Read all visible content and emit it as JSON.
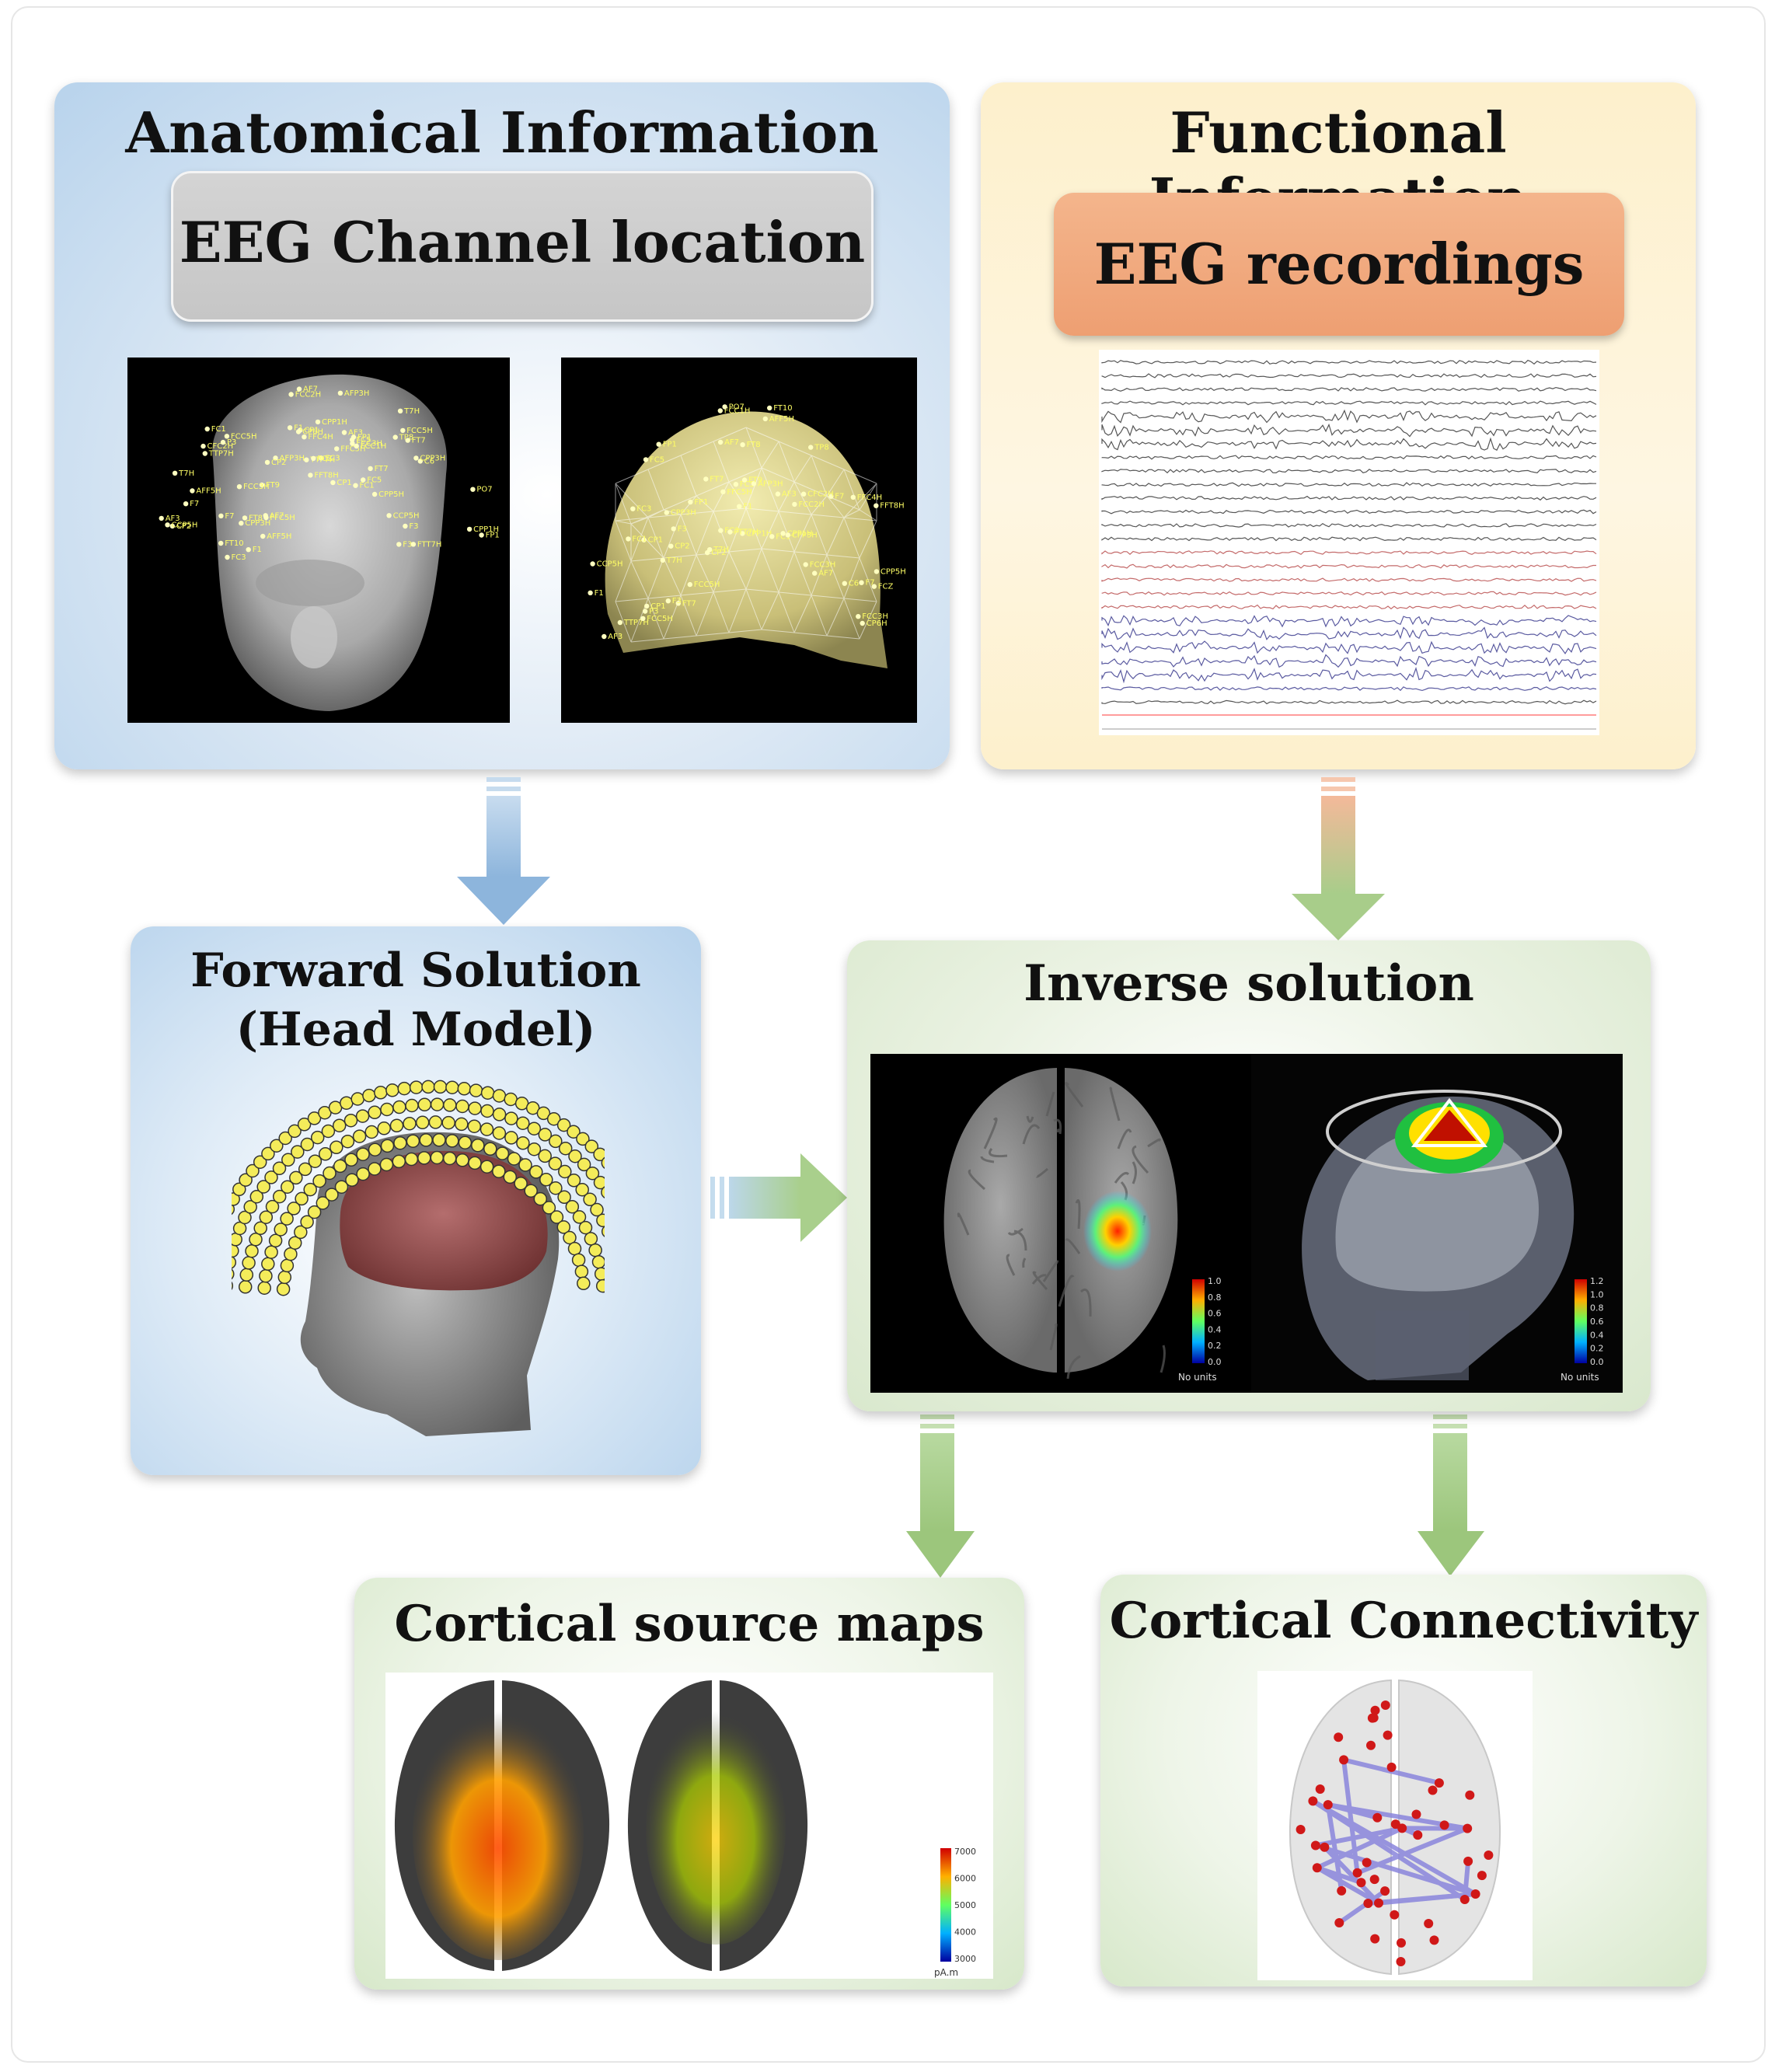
{
  "panels": {
    "anatomical": {
      "title": "Anatomical Information",
      "subtitle": "EEG Channel location"
    },
    "functional": {
      "title": "Functional Information",
      "subtitle": "EEG recordings"
    },
    "forward": {
      "title_line1": "Forward Solution",
      "title_line2": "(Head Model)"
    },
    "inverse": {
      "title": "Inverse solution",
      "colorbar_ticks_left": [
        "1.0",
        "0.8",
        "0.6",
        "0.4",
        "0.2",
        "0.0"
      ],
      "colorbar_ticks_right": [
        "1.2",
        "1.0",
        "0.8",
        "0.6",
        "0.4",
        "0.2",
        "0.0"
      ],
      "units": "No units"
    },
    "source_maps": {
      "title": "Cortical source maps",
      "colorbar_ticks": [
        "7000",
        "6000",
        "5000",
        "4000",
        "3000"
      ],
      "units": "pA.m"
    },
    "connectivity": {
      "title": "Cortical Connectivity"
    }
  },
  "colors": {
    "blue_panel": "#b8d3ec",
    "yellow_panel": "#fdeec8",
    "green_panel": "#dbe9d0",
    "gray_box": "#cfcfcf",
    "orange_box": "#f2ad82",
    "blue_arrow": "#8fb8de",
    "green_arrow": "#a6cc88"
  },
  "electrode_labels": [
    "CPP1H",
    "CPP3H",
    "CP1",
    "CP2",
    "FCC3H",
    "FCC5H",
    "FC1",
    "FC3",
    "FC5",
    "AF3",
    "AF7",
    "FP1",
    "F7",
    "F3",
    "F1",
    "FT7",
    "T7H",
    "TTP7H",
    "FFC5H",
    "AFF5H",
    "AFP3H",
    "CCP5H",
    "CFC2H",
    "FCZ",
    "FCC1H",
    "C6",
    "FT8",
    "FFT8H",
    "FT10",
    "TP8",
    "FTT7H",
    "CP6H",
    "FCC2H",
    "FFC4H",
    "FT9",
    "CPP5H",
    "P3",
    "PO7"
  ]
}
